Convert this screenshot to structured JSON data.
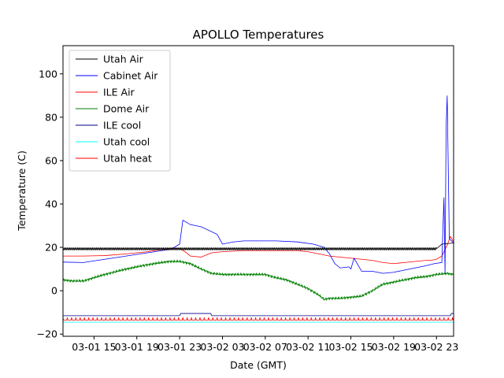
{
  "chart_data": {
    "type": "line",
    "title": "APOLLO Temperatures",
    "xlabel": "Date (GMT)",
    "ylabel": "Temperature (C)",
    "x_unit": "date-hour (MM-DD HH, GMT)",
    "xlim": [
      "03-01 12.1",
      "03-03 00.6"
    ],
    "ylim": [
      -21,
      113
    ],
    "yticks": [
      -20,
      0,
      20,
      40,
      60,
      80,
      100
    ],
    "ytick_labels": [
      "−20",
      "0",
      "20",
      "40",
      "60",
      "80",
      "100"
    ],
    "xticks": [
      "03-01 15",
      "03-01 19",
      "03-01 23",
      "03-02 03",
      "03-02 07",
      "03-02 11",
      "03-02 15",
      "03-02 19",
      "03-02 23"
    ],
    "grid": false,
    "legend_position": "upper-left",
    "series": [
      {
        "name": "Utah Air",
        "color": "#000000",
        "style": "sawtooth",
        "x": [
          "03-01 12.1",
          "03-02 23.0",
          "03-02 23.5",
          "03-03 00.6"
        ],
        "y": [
          19.3,
          19.3,
          21.5,
          22
        ]
      },
      {
        "name": "Cabinet Air",
        "color": "#0000ff",
        "style": "line",
        "x": [
          "03-01 12.1",
          "03-01 14.0",
          "03-01 16.0",
          "03-01 18.0",
          "03-01 20.0",
          "03-01 22.0",
          "03-01 22.5",
          "03-01 23.0",
          "03-01 23.3",
          "03-02 00.0",
          "03-02 01.0",
          "03-02 02.5",
          "03-02 03.0",
          "03-02 04.0",
          "03-02 05.0",
          "03-02 06.0",
          "03-02 08.0",
          "03-02 10.0",
          "03-02 11.5",
          "03-02 12.5",
          "03-02 13.0",
          "03-02 13.5",
          "03-02 14.0",
          "03-02 14.8",
          "03-02 15.0",
          "03-02 15.3",
          "03-02 16.0",
          "03-02 16.7",
          "03-02 17.0",
          "03-02 18.0",
          "03-02 19.0",
          "03-02 20.0",
          "03-02 21.0",
          "03-02 22.0",
          "03-02 22.8",
          "03-02 23.5",
          "03-02 23.7",
          "03-02 23.8",
          "03-02 23.9",
          "03-03 00.0",
          "03-03 00.2",
          "03-03 00.6"
        ],
        "y": [
          13.2,
          13.0,
          14.5,
          16.0,
          17.5,
          19.0,
          20.0,
          21.5,
          32.5,
          30.5,
          29.5,
          26.0,
          21.5,
          22.5,
          23.0,
          23.0,
          23.0,
          22.5,
          21.5,
          20.0,
          17.0,
          12.5,
          10.5,
          11.0,
          10.0,
          15.0,
          9.0,
          9.0,
          9.0,
          8.0,
          8.5,
          9.5,
          10.5,
          11.5,
          12.5,
          13.0,
          43.0,
          8.0,
          75.0,
          90.0,
          24.0,
          22.0
        ]
      },
      {
        "name": "ILE Air",
        "color": "#ff0000",
        "style": "line",
        "x": [
          "03-01 12.1",
          "03-01 14.0",
          "03-01 16.0",
          "03-01 18.0",
          "03-01 20.0",
          "03-01 22.0",
          "03-01 23.0",
          "03-01 23.5",
          "03-02 00.0",
          "03-02 01.0",
          "03-02 02.0",
          "03-02 03.0",
          "03-02 05.0",
          "03-02 07.0",
          "03-02 09.0",
          "03-02 10.0",
          "03-02 11.0",
          "03-02 12.0",
          "03-02 13.0",
          "03-02 14.0",
          "03-02 15.0",
          "03-02 16.0",
          "03-02 17.0",
          "03-02 18.0",
          "03-02 19.0",
          "03-02 20.0",
          "03-02 21.0",
          "03-02 22.0",
          "03-02 22.5",
          "03-02 23.0",
          "03-02 23.5",
          "03-03 00.0",
          "03-03 00.3",
          "03-03 00.6"
        ],
        "y": [
          16.0,
          16.0,
          16.2,
          17.0,
          18.0,
          19.5,
          19.5,
          18.0,
          16.0,
          15.5,
          17.5,
          18.0,
          18.5,
          18.5,
          18.5,
          18.5,
          18.0,
          17.0,
          16.0,
          15.5,
          15.0,
          14.5,
          14.0,
          13.0,
          12.5,
          13.0,
          13.5,
          14.0,
          14.0,
          14.5,
          16.0,
          21.0,
          25.0,
          22.5
        ]
      },
      {
        "name": "Dome Air",
        "color": "#008000",
        "style": "noisy",
        "x": [
          "03-01 12.1",
          "03-01 13.0",
          "03-01 14.0",
          "03-01 16.0",
          "03-01 18.0",
          "03-01 20.0",
          "03-01 22.0",
          "03-01 23.0",
          "03-02 00.0",
          "03-02 01.0",
          "03-02 02.0",
          "03-02 03.0",
          "03-02 05.0",
          "03-02 07.0",
          "03-02 08.0",
          "03-02 09.0",
          "03-02 10.0",
          "03-02 11.0",
          "03-02 12.0",
          "03-02 12.5",
          "03-02 13.0",
          "03-02 14.0",
          "03-02 16.0",
          "03-02 17.0",
          "03-02 18.0",
          "03-02 19.0",
          "03-02 20.0",
          "03-02 21.0",
          "03-02 22.0",
          "03-02 23.0",
          "03-03 00.0",
          "03-03 00.6"
        ],
        "y": [
          5.0,
          4.5,
          4.5,
          7.5,
          10.0,
          12.0,
          13.5,
          13.5,
          12.5,
          10.0,
          8.0,
          7.5,
          7.5,
          7.5,
          6.0,
          5.0,
          3.0,
          1.0,
          -2.0,
          -4.0,
          -3.5,
          -3.5,
          -2.5,
          0.0,
          3.0,
          4.0,
          5.0,
          6.0,
          6.5,
          7.5,
          8.0,
          7.5
        ]
      },
      {
        "name": "ILE cool",
        "color": "#00008b",
        "style": "step",
        "x": [
          "03-01 12.1",
          "03-01 23.0",
          "03-01 23.1",
          "03-02 01.9",
          "03-02 02.0",
          "03-03 00.3",
          "03-03 00.4",
          "03-03 00.6"
        ],
        "y": [
          -11.5,
          -11.5,
          -10.5,
          -10.5,
          -11.5,
          -11.5,
          -10.5,
          -10.5
        ]
      },
      {
        "name": "Utah cool",
        "color": "#00ffff",
        "style": "line",
        "x": [
          "03-01 12.1",
          "03-03 00.6"
        ],
        "y": [
          -14.5,
          -14.5
        ]
      },
      {
        "name": "Utah heat",
        "color": "#ff0000",
        "style": "pulses",
        "x": [
          "03-01 12.1",
          "03-03 00.6"
        ],
        "y": [
          -13.5,
          -13.5
        ]
      }
    ]
  }
}
